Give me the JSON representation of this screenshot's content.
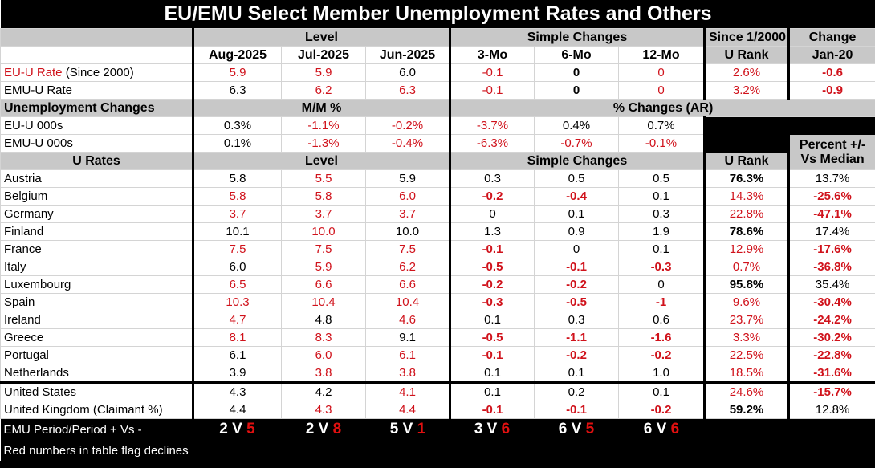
{
  "title": "EU/EMU Select Member Unemployment Rates and Others",
  "header": {
    "level": "Level",
    "simple_changes": "Simple Changes",
    "since": "Since 1/2000",
    "u_rank": "U Rank",
    "change": "Change",
    "jan20": "Jan-20",
    "months": [
      "Aug-2025",
      "Jul-2025",
      "Jun-2025"
    ],
    "periods": [
      "3-Mo",
      "6-Mo",
      "12-Mo"
    ]
  },
  "summary_rows": [
    {
      "label_red": "EU-U Rate",
      "label_rest": " (Since 2000)",
      "cells": [
        [
          "5.9",
          "r"
        ],
        [
          "5.9",
          "r"
        ],
        [
          "6.0",
          "k"
        ],
        [
          "-0.1",
          "r"
        ],
        [
          "0",
          "kb"
        ],
        [
          "0",
          "r"
        ],
        [
          "2.6%",
          "r"
        ],
        [
          "-0.6",
          "rb"
        ]
      ]
    },
    {
      "label_red": "",
      "label_rest": "EMU-U Rate",
      "cells": [
        [
          "6.3",
          "k"
        ],
        [
          "6.2",
          "r"
        ],
        [
          "6.3",
          "r"
        ],
        [
          "-0.1",
          "r"
        ],
        [
          "0",
          "kb"
        ],
        [
          "0",
          "r"
        ],
        [
          "3.2%",
          "r"
        ],
        [
          "-0.9",
          "rb"
        ]
      ]
    }
  ],
  "changes": {
    "header": "Unemployment Changes",
    "mm": "M/M %",
    "ar": "% Changes (AR)",
    "rows": [
      {
        "label": "EU-U 000s",
        "cells": [
          [
            "0.3%",
            "k"
          ],
          [
            "-1.1%",
            "r"
          ],
          [
            "-0.2%",
            "r"
          ],
          [
            "-3.7%",
            "r"
          ],
          [
            "0.4%",
            "k"
          ],
          [
            "0.7%",
            "k"
          ]
        ]
      },
      {
        "label": "EMU-U 000s",
        "cells": [
          [
            "0.1%",
            "k"
          ],
          [
            "-1.3%",
            "r"
          ],
          [
            "-0.4%",
            "r"
          ],
          [
            "-6.3%",
            "r"
          ],
          [
            "-0.7%",
            "r"
          ],
          [
            "-0.1%",
            "r"
          ]
        ]
      }
    ]
  },
  "rates": {
    "header": "U Rates",
    "level": "Level",
    "simple_changes": "Simple Changes",
    "u_rank": "U Rank",
    "pct1": "Percent +/-",
    "pct2": "Vs Median",
    "rows": [
      {
        "label": "Austria",
        "cells": [
          [
            "5.8",
            "k"
          ],
          [
            "5.5",
            "r"
          ],
          [
            "5.9",
            "k"
          ],
          [
            "0.3",
            "k"
          ],
          [
            "0.5",
            "k"
          ],
          [
            "0.5",
            "k"
          ],
          [
            "76.3%",
            "kb"
          ],
          [
            "13.7%",
            "k"
          ]
        ]
      },
      {
        "label": "Belgium",
        "cells": [
          [
            "5.8",
            "r"
          ],
          [
            "5.8",
            "r"
          ],
          [
            "6.0",
            "r"
          ],
          [
            "-0.2",
            "rb"
          ],
          [
            "-0.4",
            "rb"
          ],
          [
            "0.1",
            "k"
          ],
          [
            "14.3%",
            "r"
          ],
          [
            "-25.6%",
            "rb"
          ]
        ]
      },
      {
        "label": "Germany",
        "cells": [
          [
            "3.7",
            "r"
          ],
          [
            "3.7",
            "r"
          ],
          [
            "3.7",
            "r"
          ],
          [
            "0",
            "k"
          ],
          [
            "0.1",
            "k"
          ],
          [
            "0.3",
            "k"
          ],
          [
            "22.8%",
            "r"
          ],
          [
            "-47.1%",
            "rb"
          ]
        ]
      },
      {
        "label": "Finland",
        "cells": [
          [
            "10.1",
            "k"
          ],
          [
            "10.0",
            "r"
          ],
          [
            "10.0",
            "k"
          ],
          [
            "1.3",
            "k"
          ],
          [
            "0.9",
            "k"
          ],
          [
            "1.9",
            "k"
          ],
          [
            "78.6%",
            "kb"
          ],
          [
            "17.4%",
            "k"
          ]
        ]
      },
      {
        "label": "France",
        "cells": [
          [
            "7.5",
            "r"
          ],
          [
            "7.5",
            "r"
          ],
          [
            "7.5",
            "r"
          ],
          [
            "-0.1",
            "rb"
          ],
          [
            "0",
            "k"
          ],
          [
            "0.1",
            "k"
          ],
          [
            "12.9%",
            "r"
          ],
          [
            "-17.6%",
            "rb"
          ]
        ]
      },
      {
        "label": "Italy",
        "cells": [
          [
            "6.0",
            "k"
          ],
          [
            "5.9",
            "r"
          ],
          [
            "6.2",
            "r"
          ],
          [
            "-0.5",
            "rb"
          ],
          [
            "-0.1",
            "rb"
          ],
          [
            "-0.3",
            "rb"
          ],
          [
            "0.7%",
            "r"
          ],
          [
            "-36.8%",
            "rb"
          ]
        ]
      },
      {
        "label": "Luxembourg",
        "cells": [
          [
            "6.5",
            "r"
          ],
          [
            "6.6",
            "r"
          ],
          [
            "6.6",
            "r"
          ],
          [
            "-0.2",
            "rb"
          ],
          [
            "-0.2",
            "rb"
          ],
          [
            "0",
            "k"
          ],
          [
            "95.8%",
            "kb"
          ],
          [
            "35.4%",
            "k"
          ]
        ]
      },
      {
        "label": "Spain",
        "cells": [
          [
            "10.3",
            "r"
          ],
          [
            "10.4",
            "r"
          ],
          [
            "10.4",
            "r"
          ],
          [
            "-0.3",
            "rb"
          ],
          [
            "-0.5",
            "rb"
          ],
          [
            "-1",
            "rb"
          ],
          [
            "9.6%",
            "r"
          ],
          [
            "-30.4%",
            "rb"
          ]
        ]
      },
      {
        "label": "Ireland",
        "cells": [
          [
            "4.7",
            "r"
          ],
          [
            "4.8",
            "k"
          ],
          [
            "4.6",
            "r"
          ],
          [
            "0.1",
            "k"
          ],
          [
            "0.3",
            "k"
          ],
          [
            "0.6",
            "k"
          ],
          [
            "23.7%",
            "r"
          ],
          [
            "-24.2%",
            "rb"
          ]
        ]
      },
      {
        "label": "Greece",
        "cells": [
          [
            "8.1",
            "r"
          ],
          [
            "8.3",
            "r"
          ],
          [
            "9.1",
            "k"
          ],
          [
            "-0.5",
            "rb"
          ],
          [
            "-1.1",
            "rb"
          ],
          [
            "-1.6",
            "rb"
          ],
          [
            "3.3%",
            "r"
          ],
          [
            "-30.2%",
            "rb"
          ]
        ]
      },
      {
        "label": "Portugal",
        "cells": [
          [
            "6.1",
            "k"
          ],
          [
            "6.0",
            "r"
          ],
          [
            "6.1",
            "r"
          ],
          [
            "-0.1",
            "rb"
          ],
          [
            "-0.2",
            "rb"
          ],
          [
            "-0.2",
            "rb"
          ],
          [
            "22.5%",
            "r"
          ],
          [
            "-22.8%",
            "rb"
          ]
        ]
      },
      {
        "label": "Netherlands",
        "cells": [
          [
            "3.9",
            "k"
          ],
          [
            "3.8",
            "r"
          ],
          [
            "3.8",
            "r"
          ],
          [
            "0.1",
            "k"
          ],
          [
            "0.1",
            "k"
          ],
          [
            "1.0",
            "k"
          ],
          [
            "18.5%",
            "r"
          ],
          [
            "-31.6%",
            "rb"
          ]
        ]
      }
    ]
  },
  "others": [
    {
      "label": "United States",
      "cells": [
        [
          "4.3",
          "k"
        ],
        [
          "4.2",
          "k"
        ],
        [
          "4.1",
          "r"
        ],
        [
          "0.1",
          "k"
        ],
        [
          "0.2",
          "k"
        ],
        [
          "0.1",
          "k"
        ],
        [
          "24.6%",
          "r"
        ],
        [
          "-15.7%",
          "rb"
        ]
      ]
    },
    {
      "label": "United Kingdom (Claimant %)",
      "cells": [
        [
          "4.4",
          "k"
        ],
        [
          "4.3",
          "r"
        ],
        [
          "4.4",
          "r"
        ],
        [
          "-0.1",
          "rb"
        ],
        [
          "-0.1",
          "rb"
        ],
        [
          "-0.2",
          "rb"
        ],
        [
          "59.2%",
          "kb"
        ],
        [
          "12.8%",
          "k"
        ]
      ]
    }
  ],
  "footer": {
    "label": "EMU Period/Period + Vs -",
    "tallies": [
      [
        "2",
        "5"
      ],
      [
        "2",
        "8"
      ],
      [
        "5",
        "1"
      ],
      [
        "3",
        "6"
      ],
      [
        "6",
        "5"
      ],
      [
        "6",
        "6"
      ]
    ],
    "note": "Red numbers in table flag declines"
  },
  "colors": {
    "decline": "#d0121b",
    "header_gray": "#c8c8c8"
  }
}
